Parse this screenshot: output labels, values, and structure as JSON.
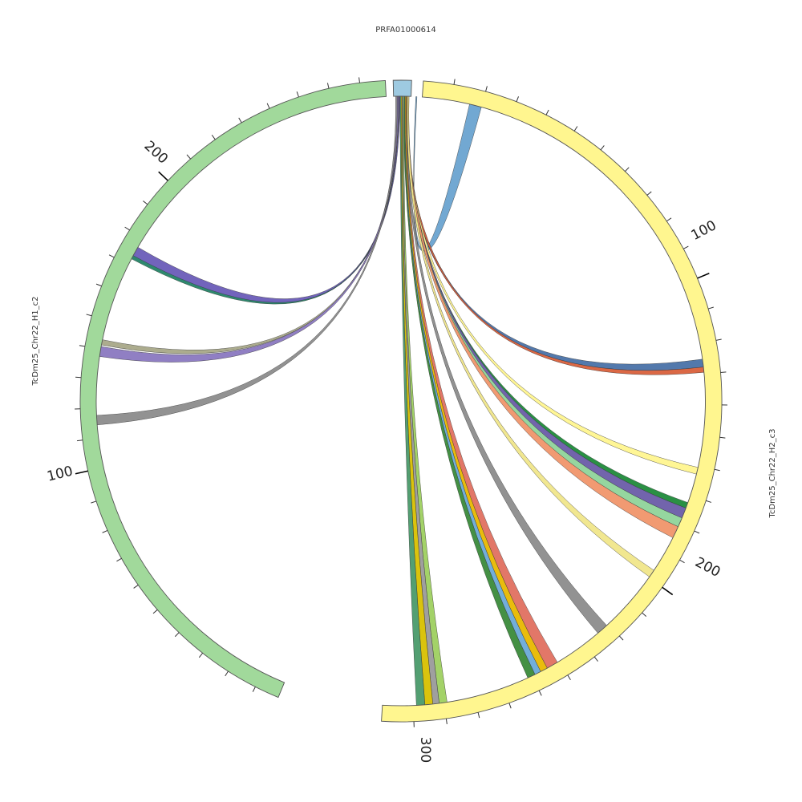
{
  "chart_data": {
    "type": "chord",
    "title": "",
    "segments": [
      {
        "name": "PRFA01000614",
        "color": "#9ecae1"
      },
      {
        "name": "TcDm25_Chr22_H2_c3",
        "color": "#fff68f"
      },
      {
        "name": "TcDm25_Chr22_H1_c2",
        "color": "#a1d99b"
      }
    ],
    "tick_labels": [
      "100",
      "200",
      "300",
      "100",
      "200"
    ],
    "links": [
      {
        "target": "TcDm25_Chr22_H2_c3",
        "color": "#6aa3d0"
      },
      {
        "target": "TcDm25_Chr22_H2_c3",
        "color": "#4a72a8"
      },
      {
        "target": "TcDm25_Chr22_H2_c3",
        "color": "#d9603b"
      },
      {
        "target": "TcDm25_Chr22_H2_c3",
        "color": "#fff68f"
      },
      {
        "target": "TcDm25_Chr22_H2_c3",
        "color": "#1f8a3a"
      },
      {
        "target": "TcDm25_Chr22_H2_c3",
        "color": "#6a5ca8"
      },
      {
        "target": "TcDm25_Chr22_H2_c3",
        "color": "#8fd49a"
      },
      {
        "target": "TcDm25_Chr22_H2_c3",
        "color": "#f0956a"
      },
      {
        "target": "TcDm25_Chr22_H2_c3",
        "color": "#f0e68a"
      },
      {
        "target": "TcDm25_Chr22_H2_c3",
        "color": "#8c8c8c"
      },
      {
        "target": "TcDm25_Chr22_H2_c3",
        "color": "#e07060"
      },
      {
        "target": "TcDm25_Chr22_H2_c3",
        "color": "#e8b800"
      },
      {
        "target": "TcDm25_Chr22_H2_c3",
        "color": "#6aaad8"
      },
      {
        "target": "TcDm25_Chr22_H2_c3",
        "color": "#3a8a3a"
      },
      {
        "target": "TcDm25_Chr22_H2_c3",
        "color": "#9ed060"
      },
      {
        "target": "TcDm25_Chr22_H2_c3",
        "color": "#9a9a9a"
      },
      {
        "target": "TcDm25_Chr22_H2_c3",
        "color": "#d8c000"
      },
      {
        "target": "TcDm25_Chr22_H2_c3",
        "color": "#4a9a6a"
      },
      {
        "target": "TcDm25_Chr22_H1_c2",
        "color": "#6a5cb8"
      },
      {
        "target": "TcDm25_Chr22_H1_c2",
        "color": "#2a8a6a"
      },
      {
        "target": "TcDm25_Chr22_H1_c2",
        "color": "#a8a888"
      },
      {
        "target": "TcDm25_Chr22_H1_c2",
        "color": "#8a78c0"
      },
      {
        "target": "TcDm25_Chr22_H1_c2",
        "color": "#8c8c8c"
      }
    ]
  }
}
